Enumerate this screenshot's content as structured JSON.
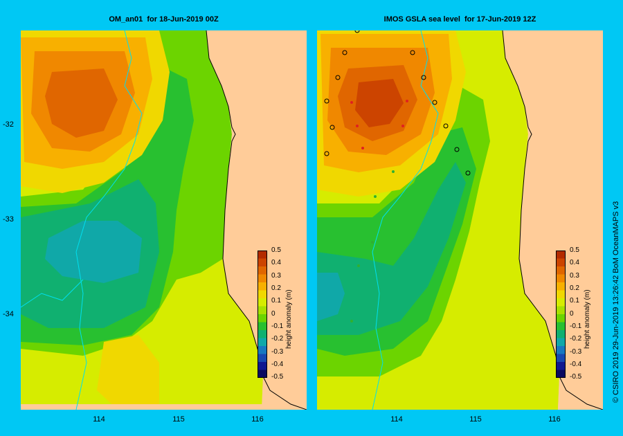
{
  "left_panel": {
    "title": "OM_an01  for 18-Jun-2019 00Z"
  },
  "right_panel": {
    "title": "IMOS GSLA sea level  for 17-Jun-2019 12Z"
  },
  "lat_ticks": [
    "-32",
    "-33",
    "-34"
  ],
  "lon_ticks": [
    "114",
    "115",
    "116"
  ],
  "colorbar": {
    "title": "height anomaly (m)",
    "labels": [
      "0.5",
      "0.4",
      "0.3",
      "0.2",
      "0.1",
      "0",
      "-0.1",
      "-0.2",
      "-0.3",
      "-0.4",
      "-0.5"
    ],
    "colors": [
      "#b32b00",
      "#cc4400",
      "#e06600",
      "#f08800",
      "#f8b000",
      "#f0d800",
      "#d6ec00",
      "#a8e000",
      "#6cd400",
      "#28c030",
      "#10b070",
      "#10a8a8",
      "#1878c0",
      "#1848b0",
      "#101890",
      "#0a0a60"
    ]
  },
  "credit": "© CSIRO 2019   29-Jun-2019 13:26:42 BoM OceanMAPS v3"
}
